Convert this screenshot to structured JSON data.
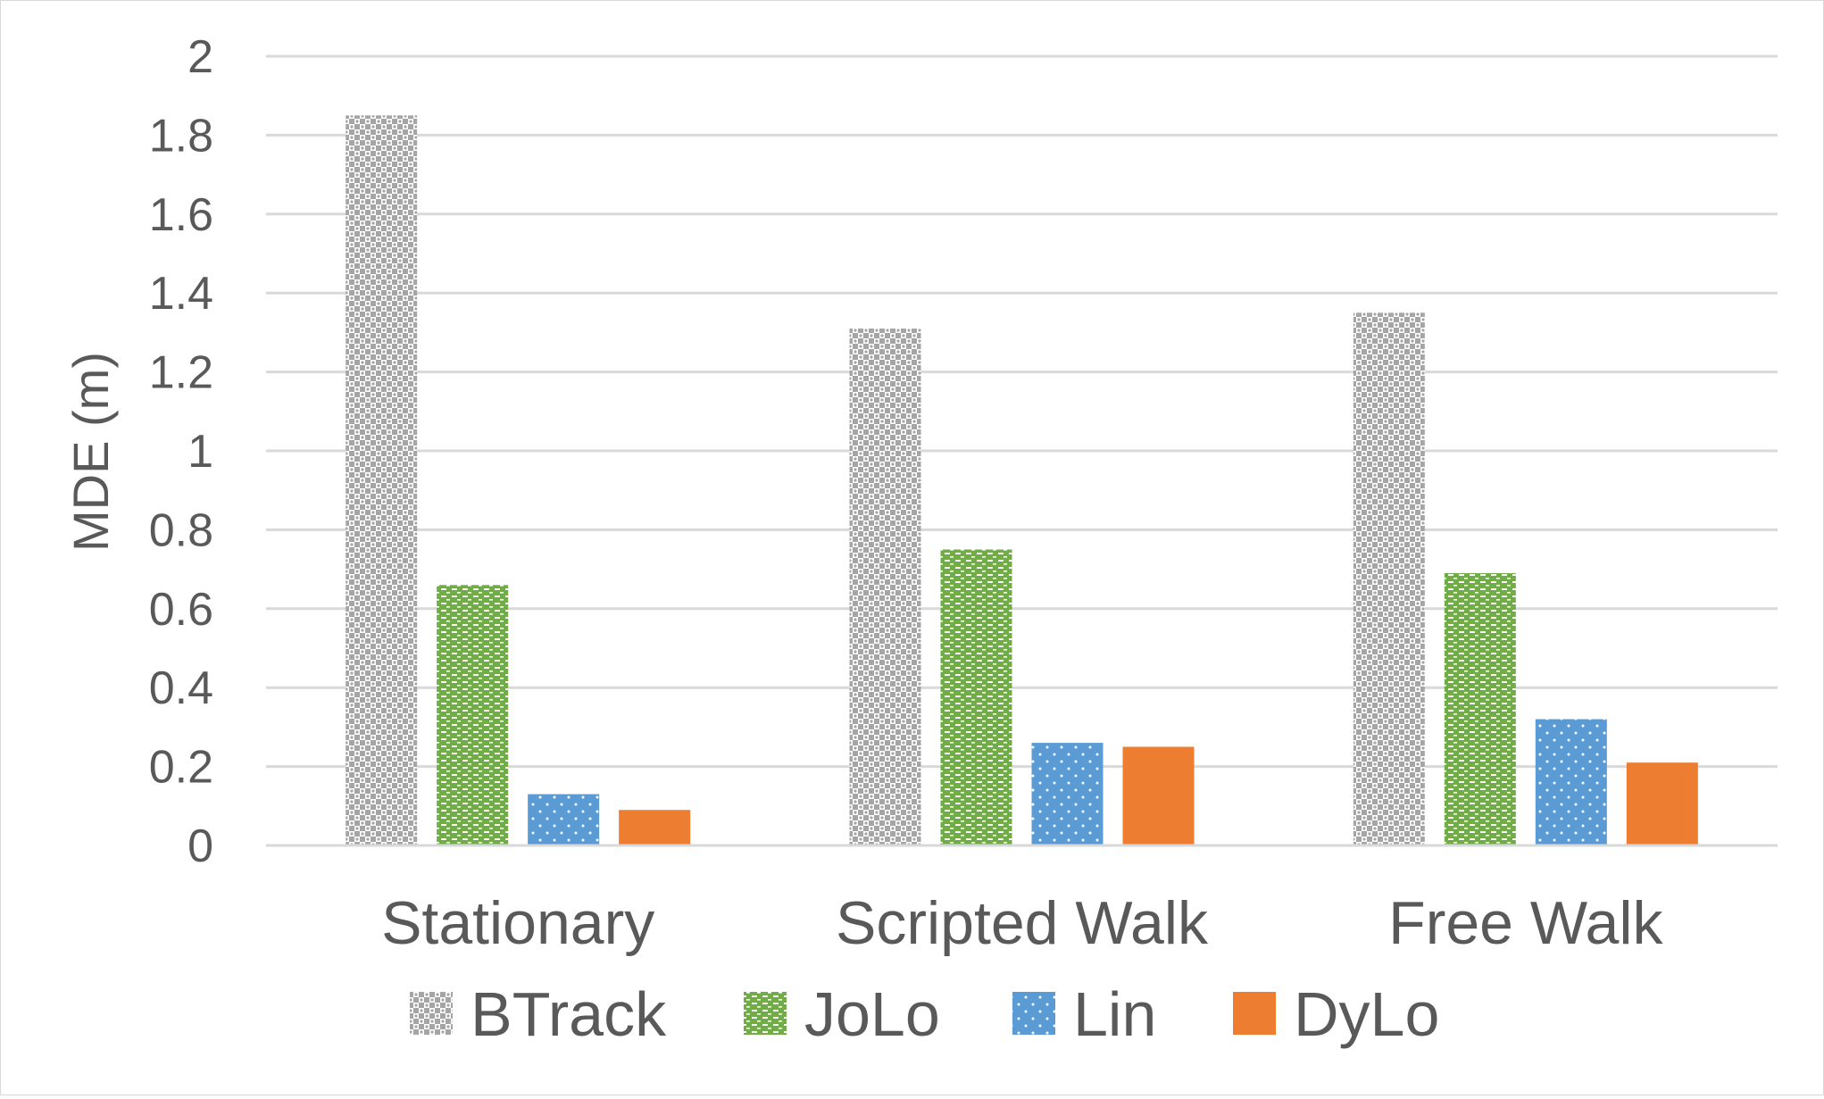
{
  "chart_data": {
    "type": "bar",
    "title": "",
    "xlabel": "",
    "ylabel": "MDE (m)",
    "ylim": [
      0,
      2
    ],
    "yticks": [
      "0",
      "0.2",
      "0.4",
      "0.6",
      "0.8",
      "1",
      "1.2",
      "1.4",
      "1.6",
      "1.8",
      "2"
    ],
    "grid": true,
    "legend_position": "bottom",
    "categories": [
      "Stationary",
      "Scripted Walk",
      "Free Walk"
    ],
    "series": [
      {
        "name": "BTrack",
        "values": [
          1.85,
          1.31,
          1.35
        ],
        "color": "#a5a5a5",
        "pattern": "checker"
      },
      {
        "name": "JoLo",
        "values": [
          0.66,
          0.75,
          0.69
        ],
        "color": "#70ad47",
        "pattern": "dashes"
      },
      {
        "name": "Lin",
        "values": [
          0.13,
          0.26,
          0.32
        ],
        "color": "#5b9bd5",
        "pattern": "dots"
      },
      {
        "name": "DyLo",
        "values": [
          0.09,
          0.25,
          0.21
        ],
        "color": "#ed7d31",
        "pattern": "solid"
      }
    ]
  }
}
